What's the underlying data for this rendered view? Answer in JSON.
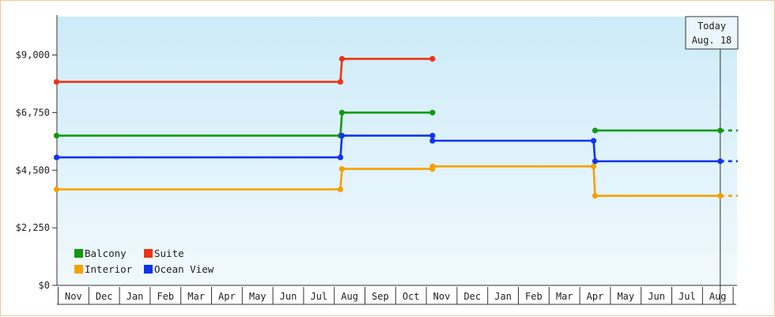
{
  "chart_data": {
    "type": "line",
    "subtype": "step",
    "title": "",
    "xlabel": "",
    "ylabel": "",
    "ylim": [
      0,
      10500
    ],
    "y_ticks": [
      {
        "value": 0,
        "label": "$0"
      },
      {
        "value": 2250,
        "label": "$2,250"
      },
      {
        "value": 4500,
        "label": "$4,500"
      },
      {
        "value": 6750,
        "label": "$6,750"
      },
      {
        "value": 9000,
        "label": "$9,000"
      }
    ],
    "x_labels": [
      "Nov",
      "Dec",
      "Jan",
      "Feb",
      "Mar",
      "Apr",
      "May",
      "Jun",
      "Jul",
      "Aug",
      "Sep",
      "Oct",
      "Nov",
      "Dec",
      "Jan",
      "Feb",
      "Mar",
      "Apr",
      "May",
      "Jun",
      "Jul",
      "Aug"
    ],
    "xlim": [
      0,
      22
    ],
    "grid": false,
    "legend_position": "bottom-left",
    "today_marker": {
      "line1": "Today",
      "line2": "Aug. 18",
      "x": 21.58
    },
    "series": [
      {
        "name": "Balcony",
        "color": "#119911",
        "segments": [
          {
            "points": [
              [
                -0.05,
                5850
              ],
              [
                9.2,
                5850
              ],
              [
                9.25,
                6750
              ],
              [
                12.2,
                6750
              ]
            ]
          },
          {
            "points": [
              [
                17.5,
                6050
              ],
              [
                21.58,
                6050
              ]
            ]
          }
        ],
        "dotted_tail": [
          [
            21.58,
            6050
          ],
          [
            22.15,
            6050
          ]
        ]
      },
      {
        "name": "Suite",
        "color": "#ee3311",
        "segments": [
          {
            "points": [
              [
                -0.05,
                7950
              ],
              [
                9.2,
                7950
              ],
              [
                9.25,
                8850
              ],
              [
                12.2,
                8850
              ]
            ]
          }
        ]
      },
      {
        "name": "Interior",
        "color": "#f5a100",
        "segments": [
          {
            "points": [
              [
                -0.05,
                3750
              ],
              [
                9.2,
                3750
              ],
              [
                9.25,
                4550
              ],
              [
                12.2,
                4550
              ],
              [
                12.2,
                4650
              ],
              [
                17.45,
                4650
              ],
              [
                17.5,
                3500
              ],
              [
                21.58,
                3500
              ]
            ]
          }
        ],
        "dotted_tail": [
          [
            21.58,
            3500
          ],
          [
            22.15,
            3500
          ]
        ]
      },
      {
        "name": "Ocean View",
        "color": "#1133ee",
        "segments": [
          {
            "points": [
              [
                -0.05,
                5000
              ],
              [
                9.2,
                5000
              ],
              [
                9.25,
                5850
              ],
              [
                12.2,
                5850
              ],
              [
                12.2,
                5650
              ],
              [
                17.45,
                5650
              ],
              [
                17.5,
                4850
              ],
              [
                21.58,
                4850
              ]
            ]
          }
        ],
        "dotted_tail": [
          [
            21.58,
            4850
          ],
          [
            22.15,
            4850
          ]
        ]
      }
    ],
    "legend_order": [
      "Balcony",
      "Suite",
      "Interior",
      "Ocean View"
    ]
  }
}
